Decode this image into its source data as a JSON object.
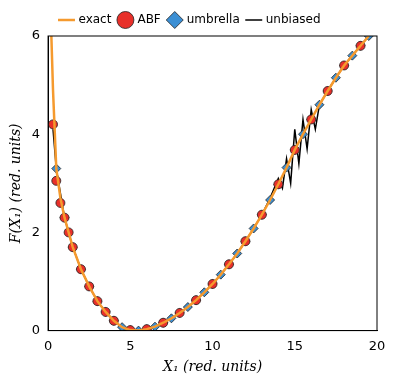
{
  "chart_data": {
    "type": "line",
    "x_label": "X₁ (red. units)",
    "y_label": "F(X₁) (red. units)",
    "xlim": [
      0,
      20
    ],
    "xticks": [
      0,
      5,
      10,
      15,
      20
    ],
    "ylim": [
      0,
      6
    ],
    "yticks": [
      0,
      2,
      4,
      6
    ],
    "grid": false,
    "legend": "top",
    "series": [
      {
        "name": "unbiased",
        "color": "#000000",
        "type": "line",
        "line_style": "solid",
        "x": [
          0.3,
          0.5,
          1,
          1.5,
          2,
          2.5,
          3,
          3.5,
          4,
          4.5,
          5,
          5.5,
          6,
          6.5,
          7,
          7.5,
          8,
          8.5,
          9,
          9.5,
          10,
          10.5,
          11,
          11.5,
          12,
          12.5,
          13,
          13.5,
          14,
          14.25,
          14.5,
          14.75,
          15,
          15.25,
          15.5,
          15.75,
          16,
          16.25,
          16.5,
          17,
          17.5,
          18,
          18.5,
          19,
          19.5
        ],
        "values": [
          4.1,
          3.3,
          2.3,
          1.7,
          1.25,
          0.9,
          0.6,
          0.38,
          0.2,
          0.07,
          0.01,
          0.0,
          0.03,
          0.08,
          0.16,
          0.25,
          0.36,
          0.48,
          0.62,
          0.78,
          0.95,
          1.14,
          1.35,
          1.57,
          1.82,
          2.08,
          2.36,
          2.7,
          3.1,
          2.9,
          3.5,
          3.0,
          4.1,
          3.4,
          4.3,
          3.7,
          4.5,
          4.1,
          4.6,
          4.88,
          5.15,
          5.4,
          5.6,
          5.8,
          6.0
        ]
      },
      {
        "name": "ABF",
        "color": "#e8302a",
        "type": "scatter",
        "marker": "circle",
        "x": [
          0.3,
          0.5,
          0.75,
          1,
          1.25,
          1.5,
          2,
          2.5,
          3,
          3.5,
          4,
          5,
          6,
          7,
          8,
          9,
          10,
          11,
          12,
          13,
          14,
          15,
          16,
          17,
          18,
          19
        ],
        "values": [
          4.2,
          3.05,
          2.6,
          2.3,
          2.0,
          1.7,
          1.25,
          0.9,
          0.6,
          0.38,
          0.2,
          0.01,
          0.03,
          0.16,
          0.36,
          0.62,
          0.95,
          1.35,
          1.82,
          2.36,
          2.98,
          3.68,
          4.3,
          4.88,
          5.4,
          5.8
        ]
      },
      {
        "name": "umbrella",
        "color": "#3b8fd4",
        "type": "scatter",
        "marker": "diamond",
        "x": [
          0.5,
          1,
          1.5,
          2,
          2.5,
          3,
          3.5,
          4,
          4.5,
          5,
          5.5,
          6,
          6.5,
          7,
          7.5,
          8,
          8.5,
          9,
          9.5,
          10,
          10.5,
          11,
          11.5,
          12,
          12.5,
          13,
          13.5,
          14,
          14.5,
          15,
          15.5,
          16,
          16.5,
          17,
          17.5,
          18,
          18.5,
          19,
          19.5
        ],
        "values": [
          3.3,
          2.3,
          1.7,
          1.25,
          0.9,
          0.6,
          0.38,
          0.2,
          0.07,
          0.01,
          0.0,
          0.03,
          0.08,
          0.16,
          0.25,
          0.36,
          0.48,
          0.62,
          0.78,
          0.95,
          1.14,
          1.35,
          1.57,
          1.82,
          2.08,
          2.36,
          2.66,
          2.98,
          3.32,
          3.68,
          4.0,
          4.3,
          4.6,
          4.88,
          5.15,
          5.4,
          5.6,
          5.8,
          6.0
        ]
      },
      {
        "name": "exact",
        "color": "#f59a2e",
        "type": "line",
        "line_style": "solid",
        "x": [
          0.2,
          0.3,
          0.5,
          0.75,
          1,
          1.5,
          2,
          2.5,
          3,
          3.5,
          4,
          4.5,
          5,
          5.5,
          6,
          6.5,
          7,
          7.5,
          8,
          8.5,
          9,
          9.5,
          10,
          10.5,
          11,
          11.5,
          12,
          12.5,
          13,
          13.5,
          14,
          14.5,
          15,
          15.5,
          16,
          16.5,
          17,
          17.5,
          18,
          18.5,
          19,
          19.5
        ],
        "values": [
          6.0,
          4.9,
          3.3,
          2.7,
          2.3,
          1.7,
          1.25,
          0.9,
          0.6,
          0.38,
          0.2,
          0.07,
          0.01,
          0.0,
          0.03,
          0.08,
          0.16,
          0.25,
          0.36,
          0.48,
          0.62,
          0.78,
          0.95,
          1.14,
          1.35,
          1.57,
          1.82,
          2.08,
          2.36,
          2.66,
          2.98,
          3.32,
          3.68,
          4.0,
          4.3,
          4.6,
          4.88,
          5.15,
          5.4,
          5.6,
          5.8,
          6.0
        ]
      }
    ]
  }
}
